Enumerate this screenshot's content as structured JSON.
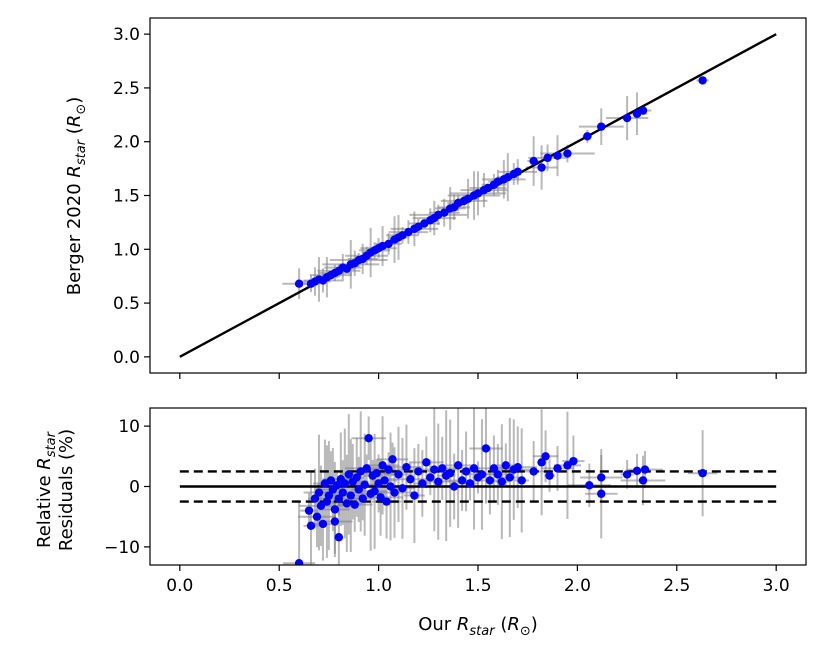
{
  "chart_data": [
    {
      "type": "scatter",
      "panel": "top",
      "xlabel": "",
      "ylabel": {
        "prefix": "Berger 2020 ",
        "symbol": "R",
        "sub": "star",
        "unit": "R",
        "unit_sub": "⊙"
      },
      "xlim": [
        -0.15,
        3.15
      ],
      "ylim": [
        -0.15,
        3.15
      ],
      "yticks": [
        "0.0",
        "0.5",
        "1.0",
        "1.5",
        "2.0",
        "2.5",
        "3.0"
      ],
      "ytick_values": [
        0,
        0.5,
        1,
        1.5,
        2,
        2.5,
        3
      ],
      "xtick_values": [
        0,
        0.5,
        1,
        1.5,
        2,
        2.5,
        3
      ],
      "xtick_labels_shown": false,
      "reference_line": {
        "x": [
          0,
          3
        ],
        "y": [
          0,
          3
        ]
      },
      "points": [
        [
          0.6,
          0.68
        ],
        [
          0.66,
          0.68
        ],
        [
          0.68,
          0.7
        ],
        [
          0.7,
          0.72
        ],
        [
          0.72,
          0.71
        ],
        [
          0.74,
          0.74
        ],
        [
          0.76,
          0.76
        ],
        [
          0.78,
          0.78
        ],
        [
          0.8,
          0.8
        ],
        [
          0.82,
          0.83
        ],
        [
          0.84,
          0.82
        ],
        [
          0.86,
          0.86
        ],
        [
          0.88,
          0.87
        ],
        [
          0.9,
          0.9
        ],
        [
          0.92,
          0.91
        ],
        [
          0.94,
          0.94
        ],
        [
          0.96,
          0.97
        ],
        [
          0.98,
          0.99
        ],
        [
          1.0,
          1.01
        ],
        [
          1.02,
          1.03
        ],
        [
          1.05,
          1.05
        ],
        [
          1.08,
          1.09
        ],
        [
          1.1,
          1.11
        ],
        [
          1.12,
          1.13
        ],
        [
          1.15,
          1.16
        ],
        [
          1.18,
          1.19
        ],
        [
          1.2,
          1.21
        ],
        [
          1.23,
          1.24
        ],
        [
          1.26,
          1.27
        ],
        [
          1.28,
          1.29
        ],
        [
          1.3,
          1.32
        ],
        [
          1.33,
          1.34
        ],
        [
          1.36,
          1.38
        ],
        [
          1.38,
          1.39
        ],
        [
          1.4,
          1.43
        ],
        [
          1.43,
          1.45
        ],
        [
          1.45,
          1.47
        ],
        [
          1.48,
          1.5
        ],
        [
          1.5,
          1.52
        ],
        [
          1.53,
          1.55
        ],
        [
          1.55,
          1.57
        ],
        [
          1.58,
          1.6
        ],
        [
          1.6,
          1.63
        ],
        [
          1.63,
          1.65
        ],
        [
          1.65,
          1.67
        ],
        [
          1.68,
          1.7
        ],
        [
          1.7,
          1.72
        ],
        [
          1.78,
          1.82
        ],
        [
          1.82,
          1.76
        ],
        [
          1.85,
          1.85
        ],
        [
          1.9,
          1.87
        ],
        [
          1.95,
          1.89
        ],
        [
          2.05,
          2.05
        ],
        [
          2.12,
          2.14
        ],
        [
          2.25,
          2.22
        ],
        [
          2.3,
          2.26
        ],
        [
          2.33,
          2.29
        ],
        [
          2.63,
          2.57
        ]
      ]
    },
    {
      "type": "scatter",
      "panel": "bottom",
      "xlabel": {
        "prefix": "Our ",
        "symbol": "R",
        "sub": "star",
        "unit": "R",
        "unit_sub": "⊙"
      },
      "ylabel": {
        "line1_prefix": "Relative ",
        "symbol": "R",
        "sub": "star",
        "line2": "Residuals (%)"
      },
      "xlim": [
        -0.15,
        3.15
      ],
      "ylim": [
        -13,
        13
      ],
      "xticks": [
        "0.0",
        "0.5",
        "1.0",
        "1.5",
        "2.0",
        "2.5",
        "3.0"
      ],
      "xtick_values": [
        0,
        0.5,
        1,
        1.5,
        2,
        2.5,
        3
      ],
      "yticks": [
        "−10",
        "0",
        "10"
      ],
      "ytick_values": [
        -10,
        0,
        10
      ],
      "reference_lines": [
        {
          "y": 0,
          "style": "solid"
        },
        {
          "y": 2.5,
          "style": "dashed"
        },
        {
          "y": -2.5,
          "style": "dashed"
        }
      ],
      "points": [
        [
          0.6,
          -12.7
        ],
        [
          0.65,
          -4.0
        ],
        [
          0.66,
          -6.5
        ],
        [
          0.68,
          -2.0
        ],
        [
          0.69,
          -5.0
        ],
        [
          0.7,
          -1.0
        ],
        [
          0.71,
          -3.2
        ],
        [
          0.72,
          -6.2
        ],
        [
          0.73,
          0.5
        ],
        [
          0.74,
          -2.5
        ],
        [
          0.75,
          -1.5
        ],
        [
          0.76,
          1.0
        ],
        [
          0.77,
          -0.5
        ],
        [
          0.78,
          -3.8
        ],
        [
          0.78,
          -5.8
        ],
        [
          0.79,
          0.2
        ],
        [
          0.8,
          -8.4
        ],
        [
          0.8,
          -2.0
        ],
        [
          0.81,
          1.2
        ],
        [
          0.82,
          -1.0
        ],
        [
          0.83,
          0.5
        ],
        [
          0.84,
          -2.8
        ],
        [
          0.85,
          2.0
        ],
        [
          0.86,
          -1.5
        ],
        [
          0.87,
          0.8
        ],
        [
          0.88,
          -3.0
        ],
        [
          0.89,
          1.5
        ],
        [
          0.9,
          -0.5
        ],
        [
          0.91,
          2.5
        ],
        [
          0.92,
          -2.0
        ],
        [
          0.93,
          0.3
        ],
        [
          0.94,
          3.0
        ],
        [
          0.95,
          8.0
        ],
        [
          0.96,
          -1.2
        ],
        [
          0.97,
          1.8
        ],
        [
          0.98,
          -0.8
        ],
        [
          0.99,
          2.2
        ],
        [
          1.0,
          0.5
        ],
        [
          1.01,
          -1.8
        ],
        [
          1.02,
          3.5
        ],
        [
          1.03,
          1.0
        ],
        [
          1.04,
          -2.5
        ],
        [
          1.05,
          2.8
        ],
        [
          1.06,
          0.0
        ],
        [
          1.07,
          4.5
        ],
        [
          1.08,
          -1.0
        ],
        [
          1.1,
          2.0
        ],
        [
          1.12,
          -0.3
        ],
        [
          1.14,
          3.2
        ],
        [
          1.16,
          1.2
        ],
        [
          1.18,
          -1.5
        ],
        [
          1.2,
          2.5
        ],
        [
          1.22,
          0.5
        ],
        [
          1.24,
          4.0
        ],
        [
          1.26,
          1.5
        ],
        [
          1.28,
          2.8
        ],
        [
          1.3,
          0.8
        ],
        [
          1.32,
          3.0
        ],
        [
          1.34,
          1.8
        ],
        [
          1.36,
          2.2
        ],
        [
          1.38,
          0.0
        ],
        [
          1.4,
          3.5
        ],
        [
          1.42,
          1.0
        ],
        [
          1.44,
          2.5
        ],
        [
          1.46,
          0.5
        ],
        [
          1.48,
          3.0
        ],
        [
          1.5,
          1.5
        ],
        [
          1.52,
          2.0
        ],
        [
          1.54,
          6.3
        ],
        [
          1.56,
          1.0
        ],
        [
          1.58,
          3.0
        ],
        [
          1.6,
          2.0
        ],
        [
          1.62,
          0.8
        ],
        [
          1.64,
          3.5
        ],
        [
          1.66,
          1.5
        ],
        [
          1.68,
          2.8
        ],
        [
          1.7,
          3.2
        ],
        [
          1.72,
          1.0
        ],
        [
          1.78,
          2.5
        ],
        [
          1.82,
          4.0
        ],
        [
          1.84,
          5.0
        ],
        [
          1.86,
          1.8
        ],
        [
          1.9,
          3.0
        ],
        [
          1.95,
          3.5
        ],
        [
          1.98,
          4.2
        ],
        [
          2.06,
          0.2
        ],
        [
          2.12,
          -1.2
        ],
        [
          2.12,
          1.5
        ],
        [
          2.25,
          2.0
        ],
        [
          2.3,
          2.6
        ],
        [
          2.33,
          1.0
        ],
        [
          2.34,
          2.8
        ],
        [
          2.63,
          2.2
        ]
      ]
    }
  ],
  "colors": {
    "point": "#0000ff",
    "errorbar": "#808080",
    "reference_line": "#000000"
  }
}
